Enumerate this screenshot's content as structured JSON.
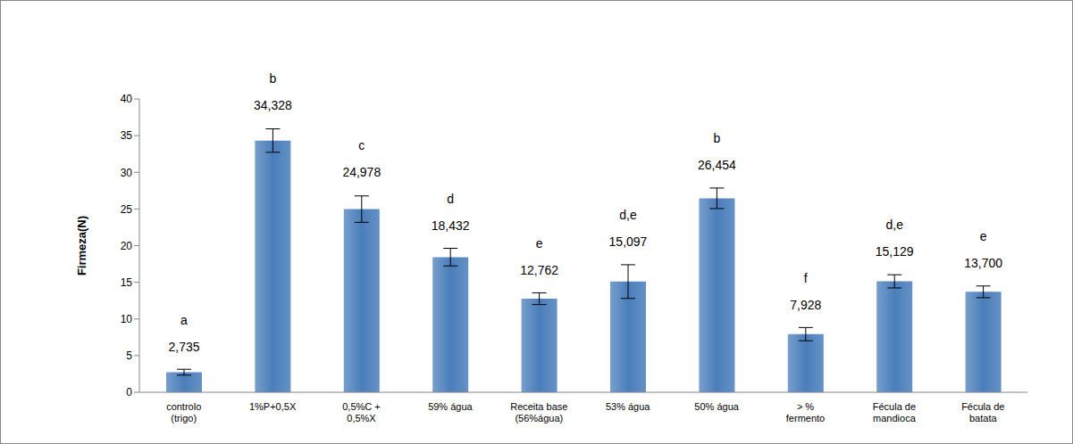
{
  "chart_data": {
    "type": "bar",
    "ylabel": "Firmeza(N)",
    "categories": [
      "controlo\n(trigo)",
      "1%P+0,5X",
      "0,5%C +\n0,5%X",
      "59% água",
      "Receita base\n(56%água)",
      "53% água",
      "50% água",
      "> %\nfermento",
      "Fécula de\nmandioca",
      "Fécula de\nbatata"
    ],
    "values": [
      2.735,
      34.328,
      24.978,
      18.432,
      12.762,
      15.097,
      26.454,
      7.928,
      15.129,
      13.7
    ],
    "value_labels": [
      "2,735",
      "34,328",
      "24,978",
      "18,432",
      "12,762",
      "15,097",
      "26,454",
      "7,928",
      "15,129",
      "13,700"
    ],
    "errors": [
      0.4,
      1.6,
      1.8,
      1.2,
      0.8,
      2.3,
      1.4,
      0.9,
      0.9,
      0.8
    ],
    "letters": [
      "a",
      "b",
      "c",
      "d",
      "e",
      "d,e",
      "b",
      "f",
      "d,e",
      "e"
    ],
    "color": "#4a7ebb",
    "ylim": [
      0,
      40
    ],
    "yticks": [
      0,
      5,
      10,
      15,
      20,
      25,
      30,
      35,
      40
    ],
    "grid": false,
    "data_labels": true
  }
}
